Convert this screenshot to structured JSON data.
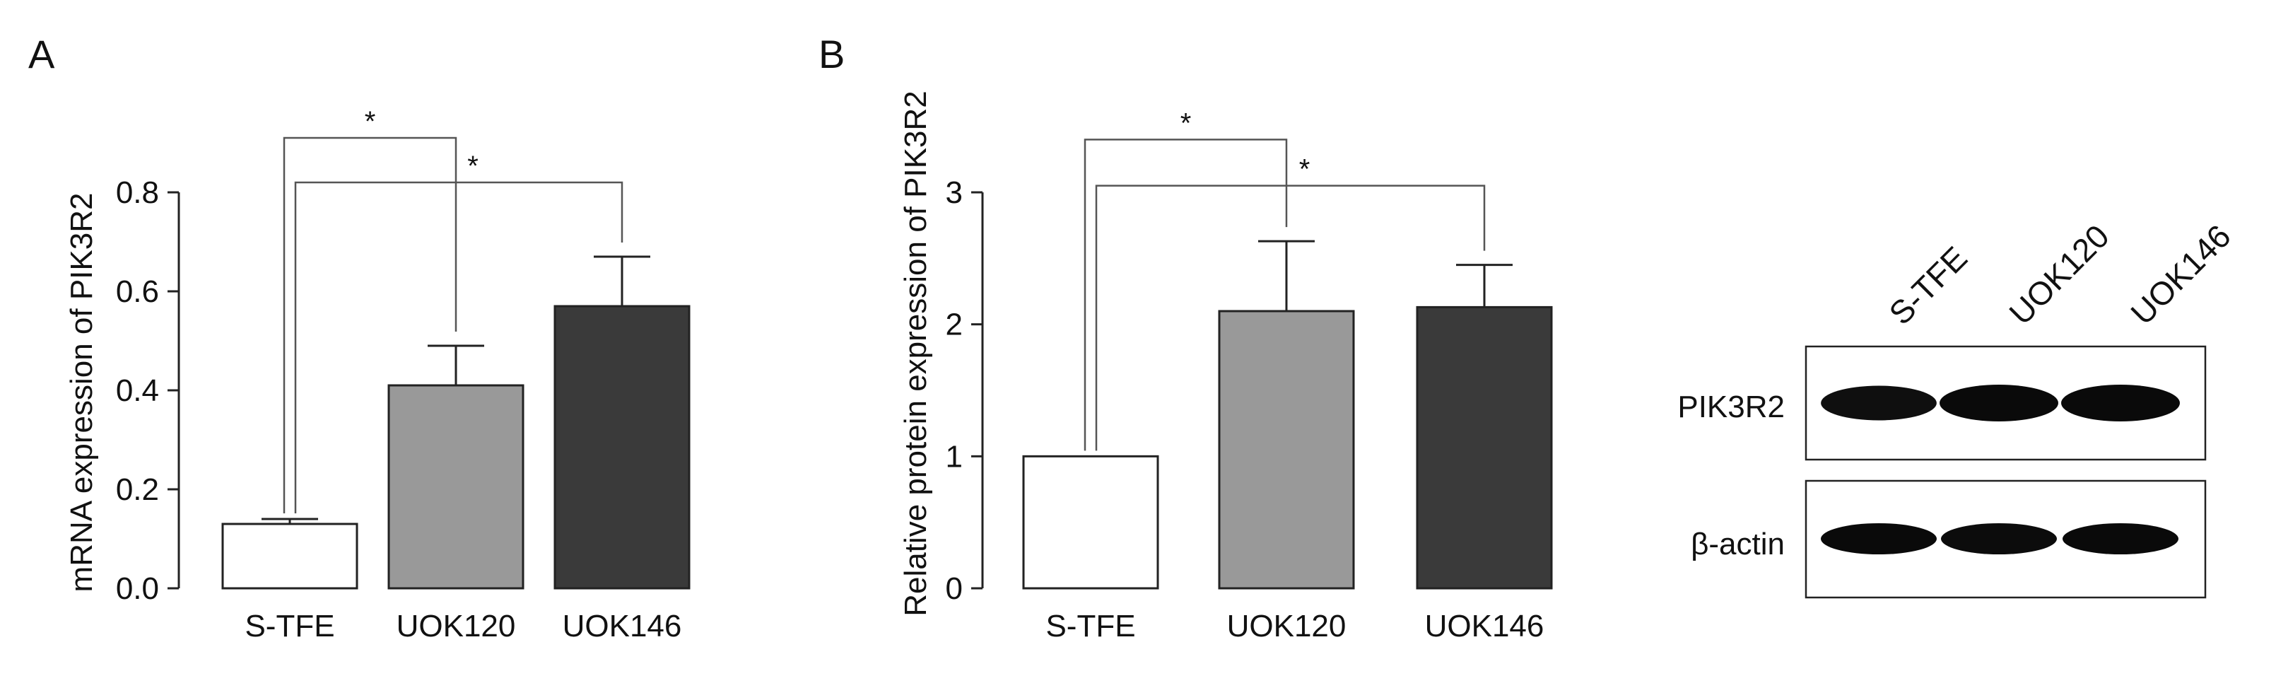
{
  "figure": {
    "panel_a_label": "A",
    "panel_b_label": "B"
  },
  "chart_data": [
    {
      "type": "bar",
      "panel": "A",
      "categories": [
        "S-TFE",
        "UOK120",
        "UOK146"
      ],
      "values": [
        0.13,
        0.41,
        0.57
      ],
      "errors": [
        0.01,
        0.08,
        0.1
      ],
      "bar_colors": [
        "#ffffff",
        "#999999",
        "#3a3a3a"
      ],
      "title": "",
      "xlabel": "",
      "ylabel": "mRNA expression of PIK3R2",
      "ylim": [
        0,
        0.8
      ],
      "yticks": [
        0.0,
        0.2,
        0.4,
        0.6,
        0.8
      ],
      "ytick_labels": [
        "0.0",
        "0.2",
        "0.4",
        "0.6",
        "0.8"
      ],
      "grid": false,
      "significance": [
        {
          "from": "S-TFE",
          "to": "UOK120",
          "label": "*",
          "y": 0.91
        },
        {
          "from": "S-TFE",
          "to": "UOK146",
          "label": "*",
          "y": 0.82
        }
      ]
    },
    {
      "type": "bar",
      "panel": "B",
      "categories": [
        "S-TFE",
        "UOK120",
        "UOK146"
      ],
      "values": [
        1.0,
        2.1,
        2.13
      ],
      "errors": [
        0.0,
        0.53,
        0.32
      ],
      "bar_colors": [
        "#ffffff",
        "#999999",
        "#3a3a3a"
      ],
      "title": "",
      "xlabel": "",
      "ylabel": "Relative protein expression of PIK3R2",
      "ylim": [
        0,
        3
      ],
      "yticks": [
        0,
        1,
        2,
        3
      ],
      "ytick_labels": [
        "0",
        "1",
        "2",
        "3"
      ],
      "grid": false,
      "significance": [
        {
          "from": "S-TFE",
          "to": "UOK120",
          "label": "*",
          "y": 3.4
        },
        {
          "from": "S-TFE",
          "to": "UOK146",
          "label": "*",
          "y": 3.05
        }
      ]
    }
  ],
  "blot": {
    "lanes": [
      "S-TFE",
      "UOK120",
      "UOK146"
    ],
    "rows": [
      {
        "label": "PIK3R2",
        "band_intensity": [
          0.85,
          1.0,
          1.0
        ]
      },
      {
        "label": "β-actin",
        "band_intensity": [
          1.0,
          0.95,
          1.0
        ]
      }
    ]
  }
}
